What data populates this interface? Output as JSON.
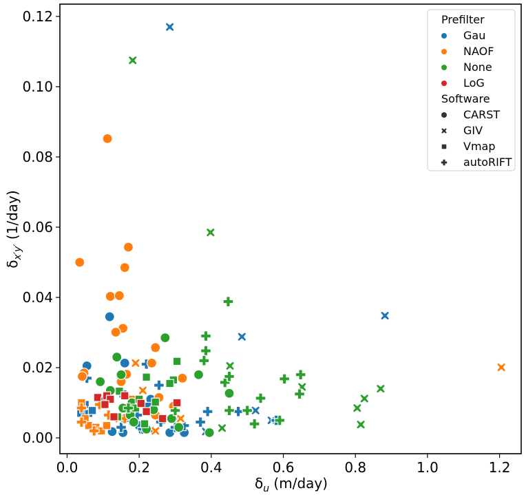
{
  "chart_data": {
    "type": "scatter",
    "xlabel_symbol": "δ",
    "xlabel_sub": "u",
    "xlabel_unit": " (m/day)",
    "ylabel_symbol": "δ",
    "ylabel_sub": "x′y′",
    "ylabel_unit": " (1/day)",
    "xlim": [
      -0.02,
      1.26
    ],
    "ylim": [
      -0.0045,
      0.1235
    ],
    "xticks": [
      "0.0",
      "0.2",
      "0.4",
      "0.6",
      "0.8",
      "1.0",
      "1.2"
    ],
    "xtick_values": [
      0.0,
      0.2,
      0.4,
      0.6,
      0.8,
      1.0,
      1.2
    ],
    "yticks": [
      "0.00",
      "0.02",
      "0.04",
      "0.06",
      "0.08",
      "0.10",
      "0.12"
    ],
    "ytick_values": [
      0.0,
      0.02,
      0.04,
      0.06,
      0.08,
      0.1,
      0.12
    ],
    "grid": false,
    "legend_position": "top-right",
    "legend": {
      "hue_title": "Prefilter",
      "hue_entries": [
        {
          "name": "Gau",
          "color": "#1f77b4"
        },
        {
          "name": "NAOF",
          "color": "#ff7f0e"
        },
        {
          "name": "None",
          "color": "#2ca02c"
        },
        {
          "name": "LoG",
          "color": "#d62728"
        }
      ],
      "style_title": "Software",
      "style_entries": [
        {
          "name": "CARST",
          "marker": "circle"
        },
        {
          "name": "GIV",
          "marker": "x"
        },
        {
          "name": "Vmap",
          "marker": "square"
        },
        {
          "name": "autoRIFT",
          "marker": "plus"
        }
      ]
    },
    "series": [
      {
        "prefilter": "Gau",
        "software": "CARST",
        "points": [
          [
            0.055,
            0.0205
          ],
          [
            0.118,
            0.0345
          ],
          [
            0.15,
            0.017
          ],
          [
            0.16,
            0.0213
          ],
          [
            0.125,
            0.0018
          ],
          [
            0.155,
            0.0015
          ],
          [
            0.232,
            0.011
          ],
          [
            0.29,
            0.0055
          ],
          [
            0.325,
            0.0015
          ],
          [
            0.285,
            0.0015
          ],
          [
            0.21,
            0.0022
          ],
          [
            0.2,
            0.0035
          ],
          [
            0.165,
            0.0065
          ]
        ]
      },
      {
        "prefilter": "Gau",
        "software": "GIV",
        "points": [
          [
            0.285,
            0.117
          ],
          [
            0.882,
            0.0348
          ],
          [
            0.485,
            0.0288
          ],
          [
            0.567,
            0.005
          ],
          [
            0.523,
            0.0078
          ],
          [
            0.385,
            0.0018
          ],
          [
            0.23,
            0.0023
          ],
          [
            0.3,
            0.0055
          ]
        ]
      },
      {
        "prefilter": "Gau",
        "software": "Vmap",
        "points": [
          [
            0.038,
            0.007
          ],
          [
            0.05,
            0.0095
          ],
          [
            0.06,
            0.007
          ],
          [
            0.07,
            0.0078
          ],
          [
            0.155,
            0.0125
          ],
          [
            0.165,
            0.0078
          ],
          [
            0.185,
            0.0068
          ],
          [
            0.225,
            0.009
          ],
          [
            0.26,
            0.0055
          ],
          [
            0.07,
            0.0028
          ]
        ]
      },
      {
        "prefilter": "Gau",
        "software": "autoRIFT",
        "points": [
          [
            0.055,
            0.017
          ],
          [
            0.22,
            0.021
          ],
          [
            0.255,
            0.015
          ],
          [
            0.15,
            0.003
          ],
          [
            0.175,
            0.005
          ],
          [
            0.195,
            0.0065
          ],
          [
            0.21,
            0.0025
          ],
          [
            0.26,
            0.0045
          ],
          [
            0.3,
            0.003
          ],
          [
            0.325,
            0.0035
          ],
          [
            0.37,
            0.0045
          ],
          [
            0.39,
            0.0075
          ],
          [
            0.475,
            0.0075
          ],
          [
            0.58,
            0.005
          ]
        ]
      },
      {
        "prefilter": "NAOF",
        "software": "CARST",
        "points": [
          [
            0.112,
            0.0852
          ],
          [
            0.035,
            0.05
          ],
          [
            0.17,
            0.0543
          ],
          [
            0.16,
            0.0485
          ],
          [
            0.12,
            0.0403
          ],
          [
            0.145,
            0.0405
          ],
          [
            0.155,
            0.0312
          ],
          [
            0.135,
            0.0301
          ],
          [
            0.245,
            0.0257
          ],
          [
            0.235,
            0.0213
          ],
          [
            0.165,
            0.0181
          ],
          [
            0.15,
            0.016
          ],
          [
            0.255,
            0.0115
          ],
          [
            0.32,
            0.017
          ],
          [
            0.245,
            0.0065
          ],
          [
            0.295,
            0.009
          ],
          [
            0.047,
            0.0185
          ],
          [
            0.042,
            0.0175
          ]
        ]
      },
      {
        "prefilter": "NAOF",
        "software": "GIV",
        "points": [
          [
            1.205,
            0.0201
          ],
          [
            0.19,
            0.0213
          ],
          [
            0.21,
            0.0135
          ],
          [
            0.145,
            0.0055
          ],
          [
            0.315,
            0.0055
          ],
          [
            0.245,
            0.002
          ],
          [
            0.08,
            0.0025
          ]
        ]
      },
      {
        "prefilter": "NAOF",
        "software": "Vmap",
        "points": [
          [
            0.04,
            0.01
          ],
          [
            0.05,
            0.0055
          ],
          [
            0.06,
            0.0035
          ],
          [
            0.08,
            0.003
          ],
          [
            0.095,
            0.002
          ],
          [
            0.11,
            0.0035
          ],
          [
            0.18,
            0.011
          ]
        ]
      },
      {
        "prefilter": "NAOF",
        "software": "autoRIFT",
        "points": [
          [
            0.04,
            0.0045
          ],
          [
            0.09,
            0.0095
          ],
          [
            0.115,
            0.0065
          ],
          [
            0.16,
            0.0055
          ],
          [
            0.04,
            0.0085
          ],
          [
            0.075,
            0.002
          ]
        ]
      },
      {
        "prefilter": "None",
        "software": "CARST",
        "points": [
          [
            0.272,
            0.0285
          ],
          [
            0.138,
            0.023
          ],
          [
            0.092,
            0.016
          ],
          [
            0.365,
            0.018
          ],
          [
            0.45,
            0.0127
          ],
          [
            0.12,
            0.0135
          ],
          [
            0.15,
            0.018
          ],
          [
            0.18,
            0.01
          ],
          [
            0.155,
            0.0085
          ],
          [
            0.175,
            0.0065
          ],
          [
            0.24,
            0.008
          ],
          [
            0.29,
            0.0055
          ],
          [
            0.395,
            0.0015
          ],
          [
            0.31,
            0.003
          ],
          [
            0.185,
            0.0045
          ],
          [
            0.22,
            0.0025
          ]
        ]
      },
      {
        "prefilter": "None",
        "software": "GIV",
        "points": [
          [
            0.182,
            0.1075
          ],
          [
            0.398,
            0.0585
          ],
          [
            0.452,
            0.0205
          ],
          [
            0.87,
            0.014
          ],
          [
            0.825,
            0.0112
          ],
          [
            0.805,
            0.0085
          ],
          [
            0.815,
            0.0038
          ],
          [
            0.652,
            0.0145
          ],
          [
            0.43,
            0.0028
          ]
        ]
      },
      {
        "prefilter": "None",
        "software": "Vmap",
        "points": [
          [
            0.305,
            0.0218
          ],
          [
            0.295,
            0.0165
          ],
          [
            0.285,
            0.0155
          ],
          [
            0.22,
            0.0173
          ],
          [
            0.145,
            0.0133
          ],
          [
            0.2,
            0.011
          ],
          [
            0.245,
            0.0102
          ],
          [
            0.19,
            0.0085
          ],
          [
            0.14,
            0.006
          ],
          [
            0.215,
            0.004
          ]
        ]
      },
      {
        "prefilter": "None",
        "software": "autoRIFT",
        "points": [
          [
            0.447,
            0.0388
          ],
          [
            0.385,
            0.029
          ],
          [
            0.385,
            0.0248
          ],
          [
            0.38,
            0.022
          ],
          [
            0.438,
            0.0158
          ],
          [
            0.45,
            0.0175
          ],
          [
            0.537,
            0.0113
          ],
          [
            0.603,
            0.0168
          ],
          [
            0.648,
            0.018
          ],
          [
            0.645,
            0.0125
          ],
          [
            0.52,
            0.004
          ],
          [
            0.45,
            0.0078
          ],
          [
            0.5,
            0.0078
          ],
          [
            0.59,
            0.005
          ],
          [
            0.3,
            0.0078
          ],
          [
            0.17,
            0.0085
          ]
        ]
      },
      {
        "prefilter": "LoG",
        "software": "Vmap",
        "points": [
          [
            0.085,
            0.0115
          ],
          [
            0.105,
            0.0105
          ],
          [
            0.11,
            0.012
          ],
          [
            0.12,
            0.011
          ],
          [
            0.105,
            0.0095
          ],
          [
            0.16,
            0.012
          ],
          [
            0.205,
            0.0098
          ],
          [
            0.22,
            0.0075
          ],
          [
            0.265,
            0.0055
          ],
          [
            0.305,
            0.01
          ],
          [
            0.13,
            0.006
          ]
        ]
      }
    ]
  }
}
